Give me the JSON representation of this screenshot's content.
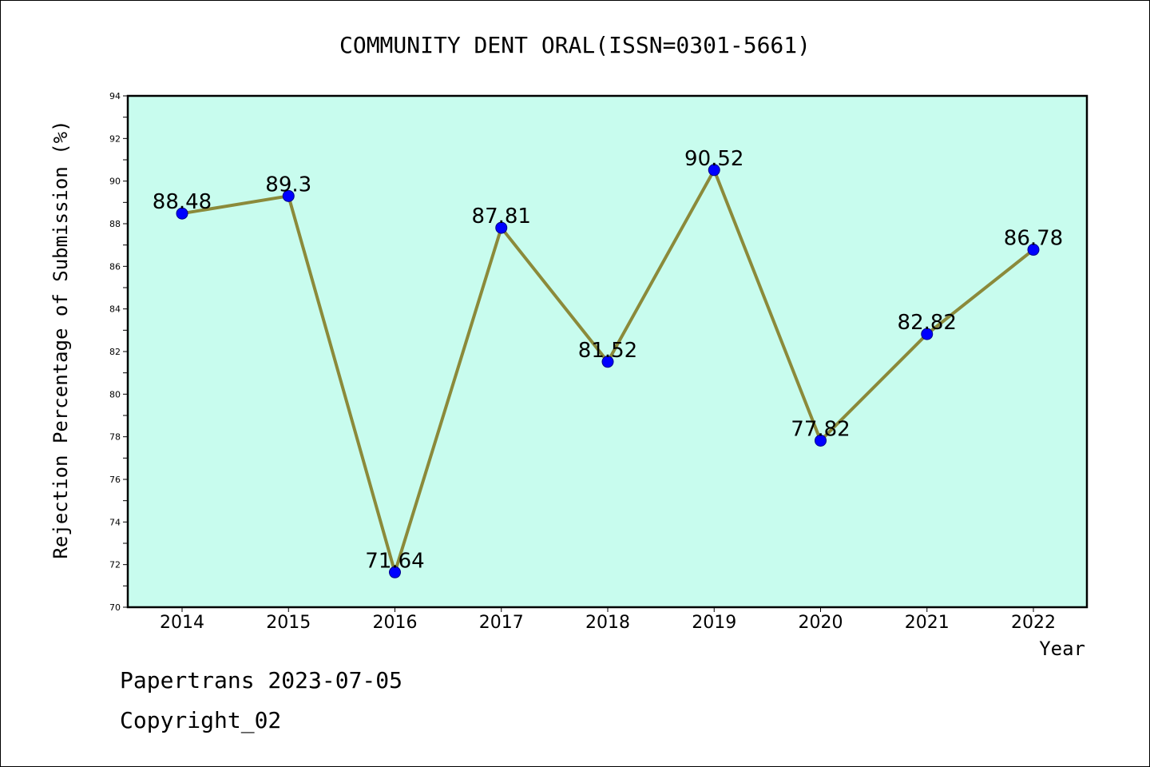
{
  "chart_data": {
    "type": "line",
    "title": "COMMUNITY DENT ORAL(ISSN=0301-5661)",
    "xlabel": "Year",
    "ylabel": "Rejection Percentage of Submission (%)",
    "categories": [
      "2014",
      "2015",
      "2016",
      "2017",
      "2018",
      "2019",
      "2020",
      "2021",
      "2022"
    ],
    "values": [
      88.48,
      89.3,
      71.64,
      87.81,
      81.52,
      90.52,
      77.82,
      82.82,
      86.78
    ],
    "data_labels": [
      "88.48",
      "89.3",
      "71.64",
      "87.81",
      "81.52",
      "90.52",
      "77.82",
      "82.82",
      "86.78"
    ],
    "ylim": [
      70,
      94
    ],
    "yticks": [
      "70",
      "72",
      "74",
      "76",
      "78",
      "80",
      "82",
      "84",
      "86",
      "88",
      "90",
      "92",
      "94"
    ],
    "grid": false,
    "plot_background": "#c8fcee",
    "line_color": "#8b8a3a",
    "marker_color": "#0000ff"
  },
  "footer": {
    "line1": "Papertrans 2023-07-05",
    "line2": "Copyright_02"
  }
}
